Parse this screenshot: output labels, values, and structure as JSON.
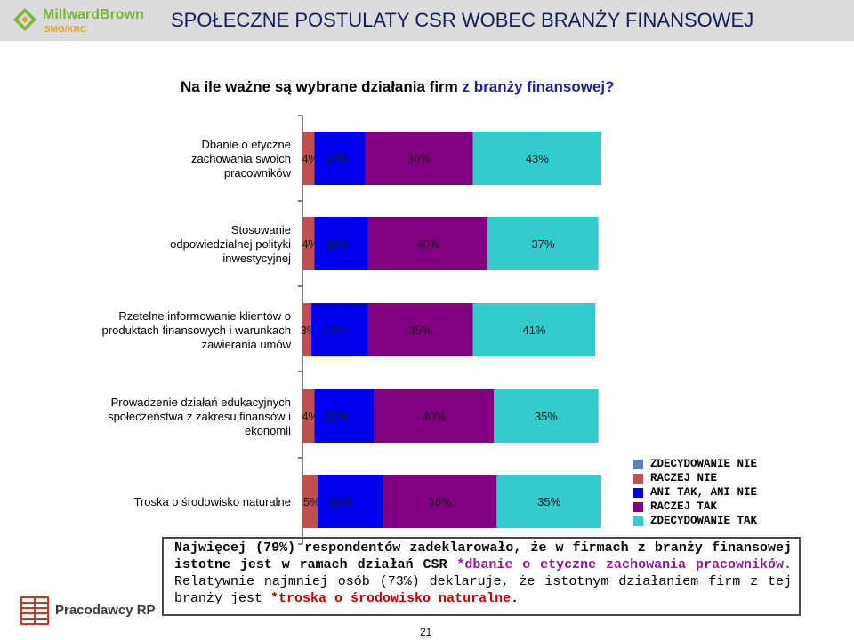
{
  "header": {
    "logo_text": "MillwardBrown",
    "logo_sub": "SMG/KRC",
    "title": "SPOŁECZNE POSTULATY CSR WOBEC BRANŻY FINANSOWEJ"
  },
  "question": {
    "part1": "Na ile ważne są wybrane działania firm ",
    "part2": "z branży finansowej?"
  },
  "colors": {
    "ZDECYDOWANIE NIE": "#5b7fc0",
    "RACZEJ NIE": "#c0504d",
    "ANI TAK, ANI NIE": "#0000ee",
    "RACZEJ TAK": "#800080",
    "ZDECYDOWANIE TAK": "#33cccc"
  },
  "chart_data": {
    "type": "bar",
    "orientation": "horizontal",
    "stacked": true,
    "categories": [
      "Dbanie o etyczne zachowania swoich pracowników",
      "Stosowanie odpowiedzialnej polityki inwestycyjnej",
      "Rzetelne informowanie klientów o produktach finansowych i warunkach zawierania umów",
      "Prowadzenie działań edukacyjnych społeczeństwa z zakresu finansów i ekonomii",
      "Troska o środowisko naturalne"
    ],
    "category_lines": [
      [
        "Dbanie o etyczne",
        "zachowania swoich",
        "pracowników"
      ],
      [
        "Stosowanie",
        "odpowiedzialnej polityki",
        "inwestycyjnej"
      ],
      [
        "Rzetelne informowanie klientów o",
        "produktach finansowych i warunkach",
        "zawierania umów"
      ],
      [
        "Prowadzenie działań edukacyjnych",
        "społeczeństwa z zakresu finansów i",
        "ekonomii"
      ],
      [
        "Troska o środowisko naturalne"
      ]
    ],
    "series": [
      {
        "name": "ZDECYDOWANIE NIE",
        "values": [
          0,
          0,
          0,
          0,
          0
        ]
      },
      {
        "name": "RACZEJ NIE",
        "values": [
          4,
          4,
          3,
          4,
          5
        ]
      },
      {
        "name": "ANI TAK, ANI NIE",
        "values": [
          17,
          18,
          19,
          20,
          22
        ]
      },
      {
        "name": "RACZEJ TAK",
        "values": [
          36,
          40,
          35,
          40,
          38
        ]
      },
      {
        "name": "ZDECYDOWANIE TAK",
        "values": [
          43,
          37,
          41,
          35,
          35
        ]
      }
    ],
    "data_labels": [
      [
        "4%",
        "17%",
        "36%",
        "43%"
      ],
      [
        "4%",
        "18%",
        "40%",
        "37%"
      ],
      [
        "3%",
        "19%",
        "35%",
        "41%"
      ],
      [
        "4%",
        "20%",
        "40%",
        "35%"
      ],
      [
        "5%",
        "22%",
        "38%",
        "35%"
      ]
    ],
    "xlim": [
      0,
      100
    ],
    "legend": "right"
  },
  "legend": {
    "items": [
      "ZDECYDOWANIE NIE",
      "RACZEJ NIE",
      "ANI TAK, ANI NIE",
      "RACZEJ TAK",
      "ZDECYDOWANIE TAK"
    ]
  },
  "note": {
    "t1": "Najwięcej (79%) respondentów zadeklarowało, że w firmach z branży finansowej istotne jest w ramach działań CSR ",
    "t2": "*dbanie o etyczne zachowania pracowników",
    "t3": ". ",
    "t4": "Relatywnie najmniej osób (73%) deklaruje, że istotnym działaniem firm z tej branży jest ",
    "t5": "*troska o środowisko naturalne",
    "t6": "."
  },
  "footer": {
    "logo_text": "Pracodawcy RP",
    "page_number": "21"
  }
}
